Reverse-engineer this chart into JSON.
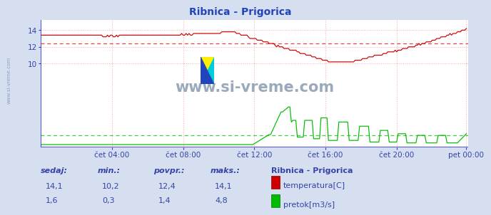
{
  "title": "Ribnica - Prigorica",
  "bg_color": "#d6dff0",
  "plot_bg_color": "#ffffff",
  "grid_color": "#ffaaaa",
  "x_ticks_labels": [
    "čet 04:00",
    "čet 08:00",
    "čet 12:00",
    "čet 16:00",
    "čet 20:00",
    "pet 00:00"
  ],
  "x_ticks_pos": [
    48,
    96,
    144,
    192,
    240,
    287
  ],
  "y_ticks": [
    10,
    12,
    14
  ],
  "ylim": [
    0.0,
    15.2
  ],
  "xlim": [
    0,
    288
  ],
  "temp_color": "#cc0000",
  "temp_avg_color": "#ee4444",
  "flow_color": "#00bb00",
  "flow_avg_color": "#44cc44",
  "axis_color": "#3333cc",
  "title_color": "#2244bb",
  "label_color": "#3344aa",
  "watermark": "www.si-vreme.com",
  "watermark_color": "#9aaabb",
  "temp_avg": 12.4,
  "flow_avg": 1.4,
  "sidebar_text": "www.si-vreme.com",
  "legend_title": "Ribnica - Prigorica",
  "legend_temp_label": "temperatura[C]",
  "legend_flow_label": "pretok[m3/s]",
  "footer_labels": [
    "sedaj:",
    "min.:",
    "povpr.:",
    "maks.:"
  ],
  "footer_temp": [
    "14,1",
    "10,2",
    "12,4",
    "14,1"
  ],
  "footer_flow": [
    "1,6",
    "0,3",
    "1,4",
    "4,8"
  ]
}
